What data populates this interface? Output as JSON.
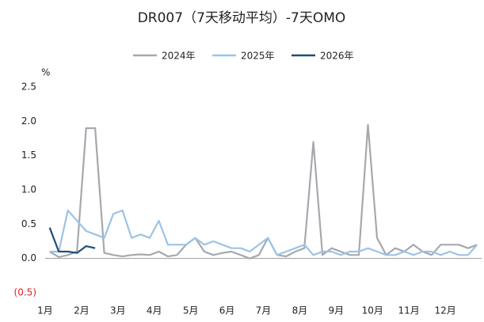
{
  "chart_data": {
    "type": "line",
    "title": "DR007（7天移动平均）-7天OMO",
    "y_unit": "%",
    "categories": [
      "1月",
      null,
      null,
      null,
      "2月",
      null,
      null,
      null,
      "3月",
      null,
      null,
      null,
      "4月",
      null,
      null,
      null,
      "5月",
      null,
      null,
      null,
      "6月",
      null,
      null,
      null,
      "7月",
      null,
      null,
      null,
      "8月",
      null,
      null,
      null,
      "9月",
      null,
      null,
      null,
      "10月",
      null,
      null,
      null,
      "11月",
      null,
      null,
      null,
      "12月",
      null,
      null,
      null
    ],
    "series": [
      {
        "name": "2024年",
        "color": "#a5a9ae",
        "values": [
          0.1,
          0.02,
          0.05,
          0.1,
          1.9,
          1.9,
          0.08,
          0.05,
          0.03,
          0.05,
          0.06,
          0.05,
          0.1,
          0.03,
          0.05,
          0.2,
          0.3,
          0.1,
          0.05,
          0.08,
          0.1,
          0.05,
          0.0,
          0.05,
          0.3,
          0.05,
          0.03,
          0.1,
          0.15,
          1.7,
          0.05,
          0.15,
          0.1,
          0.05,
          0.05,
          1.95,
          0.3,
          0.05,
          0.15,
          0.1,
          0.2,
          0.1,
          0.05,
          0.2,
          0.2,
          0.2,
          0.15,
          0.2
        ]
      },
      {
        "name": "2025年",
        "color": "#9dc3e6",
        "values": [
          0.1,
          0.1,
          0.7,
          0.55,
          0.4,
          0.35,
          0.3,
          0.65,
          0.7,
          0.3,
          0.35,
          0.3,
          0.55,
          0.2,
          0.2,
          0.2,
          0.3,
          0.2,
          0.25,
          0.2,
          0.15,
          0.15,
          0.1,
          0.2,
          0.3,
          0.05,
          0.1,
          0.15,
          0.2,
          0.05,
          0.1,
          0.1,
          0.05,
          0.1,
          0.1,
          0.15,
          0.1,
          0.05,
          0.05,
          0.1,
          0.05,
          0.1,
          0.1,
          0.05,
          0.1,
          0.05,
          0.05,
          0.2
        ]
      },
      {
        "name": "2026年",
        "color": "#1f4e79",
        "values": [
          0.45,
          0.1,
          0.1,
          0.08,
          0.18,
          0.15,
          null,
          null,
          null,
          null,
          null,
          null,
          null,
          null,
          null,
          null,
          null,
          null,
          null,
          null,
          null,
          null,
          null,
          null,
          null,
          null,
          null,
          null,
          null,
          null,
          null,
          null,
          null,
          null,
          null,
          null,
          null,
          null,
          null,
          null,
          null,
          null,
          null,
          null,
          null,
          null,
          null,
          null
        ]
      }
    ],
    "ylim": [
      -0.5,
      2.5
    ],
    "yticks": [
      {
        "value": -0.5,
        "label": "(0.5)"
      },
      {
        "value": 0,
        "label": "0.0"
      },
      0.5,
      {
        "value": 1,
        "label": "1.0"
      },
      1.5,
      {
        "value": 2,
        "label": "2.0"
      },
      2.5
    ],
    "negative_label_color": "#e02020",
    "legend": "top"
  }
}
